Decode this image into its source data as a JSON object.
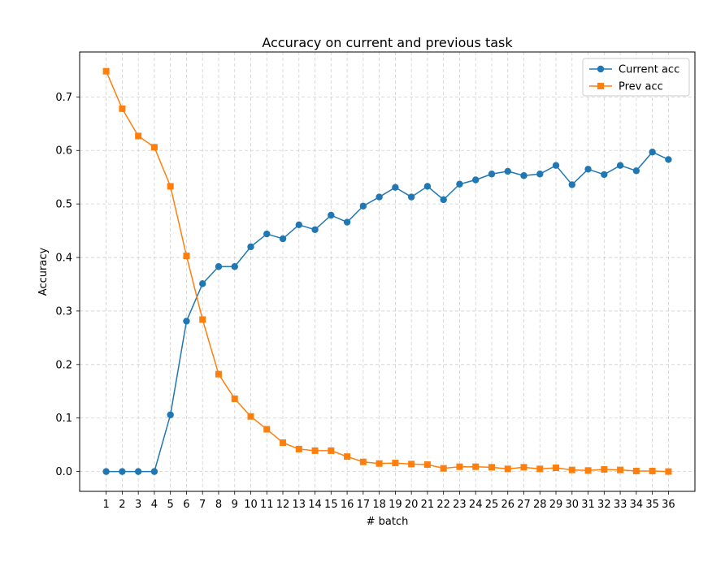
{
  "chart_data": {
    "type": "line",
    "title": "Accuracy on current and previous task",
    "xlabel": "# batch",
    "ylabel": "Accuracy",
    "x": [
      1,
      2,
      3,
      4,
      5,
      6,
      7,
      8,
      9,
      10,
      11,
      12,
      13,
      14,
      15,
      16,
      17,
      18,
      19,
      20,
      21,
      22,
      23,
      24,
      25,
      26,
      27,
      28,
      29,
      30,
      31,
      32,
      33,
      34,
      35,
      36
    ],
    "ylim": [
      -0.037,
      0.784
    ],
    "yticks": [
      0.0,
      0.1,
      0.2,
      0.3,
      0.4,
      0.5,
      0.6,
      0.7
    ],
    "ytick_labels": [
      "0.0",
      "0.1",
      "0.2",
      "0.3",
      "0.4",
      "0.5",
      "0.6",
      "0.7"
    ],
    "grid": true,
    "legend_position": "top-right",
    "series": [
      {
        "name": "Current acc",
        "color": "#1f77b4",
        "marker": "circle",
        "values": [
          0.0,
          0.0,
          0.0,
          0.0,
          0.106,
          0.281,
          0.351,
          0.383,
          0.383,
          0.42,
          0.444,
          0.435,
          0.461,
          0.452,
          0.479,
          0.466,
          0.496,
          0.513,
          0.531,
          0.513,
          0.533,
          0.508,
          0.537,
          0.545,
          0.556,
          0.561,
          0.553,
          0.556,
          0.572,
          0.536,
          0.565,
          0.555,
          0.572,
          0.562,
          0.597,
          0.583
        ]
      },
      {
        "name": "Prev acc",
        "color": "#ff7f0e",
        "marker": "square",
        "values": [
          0.748,
          0.678,
          0.627,
          0.606,
          0.533,
          0.403,
          0.284,
          0.182,
          0.136,
          0.103,
          0.079,
          0.054,
          0.042,
          0.039,
          0.039,
          0.028,
          0.018,
          0.015,
          0.016,
          0.014,
          0.013,
          0.006,
          0.009,
          0.009,
          0.008,
          0.005,
          0.008,
          0.005,
          0.007,
          0.003,
          0.002,
          0.004,
          0.003,
          0.001,
          0.001,
          0.0
        ]
      }
    ]
  }
}
